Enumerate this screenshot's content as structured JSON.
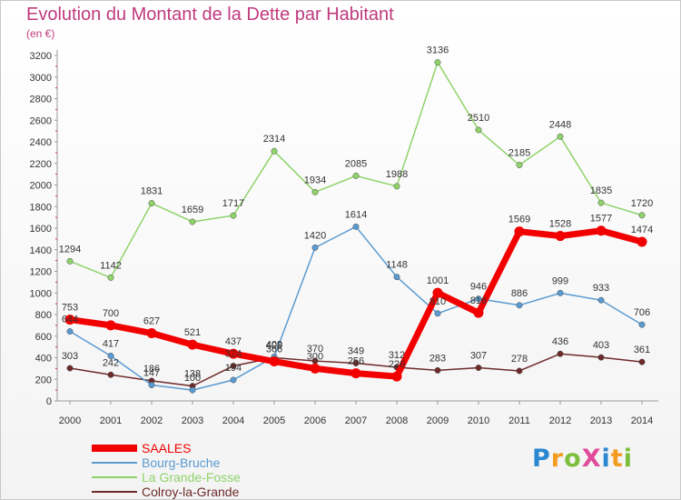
{
  "title": "Evolution du Montant de la Dette par Habitant",
  "subtitle": "(en €)",
  "logo": "ProXiti",
  "chart_data": {
    "type": "line",
    "x": [
      "2000",
      "2001",
      "2002",
      "2003",
      "2004",
      "2005",
      "2006",
      "2007",
      "2008",
      "2009",
      "2010",
      "2011",
      "2012",
      "2013",
      "2014"
    ],
    "ylim": [
      0,
      3200
    ],
    "yticks": [
      0,
      200,
      400,
      600,
      800,
      1000,
      1200,
      1400,
      1600,
      1800,
      2000,
      2200,
      2400,
      2600,
      2800,
      3000,
      3200
    ],
    "grid": false,
    "legend_position": "bottom-left",
    "series": [
      {
        "name": "Colroy-la-Grande",
        "color": "#6e2a2a",
        "width": 1.5,
        "values": [
          303,
          242,
          186,
          138,
          324,
          400,
          370,
          349,
          312,
          283,
          307,
          278,
          436,
          403,
          361
        ],
        "labels": [
          "303",
          "242",
          "186",
          "138",
          "324",
          "400",
          "370",
          "349",
          "312",
          "283",
          "307",
          "278",
          "436",
          "403",
          "361"
        ]
      },
      {
        "name": "La Grande-Fosse",
        "color": "#8fd36a",
        "width": 1.5,
        "values": [
          1294,
          1142,
          1831,
          1659,
          1717,
          2314,
          1934,
          2085,
          1988,
          3136,
          2510,
          2185,
          2448,
          1835,
          1720
        ],
        "labels": [
          "1294",
          "1142",
          "1831",
          "1659",
          "1717",
          "2314",
          "1934",
          "2085",
          "1988",
          "3136",
          "2510",
          "2185",
          "2448",
          "1835",
          "1720"
        ]
      },
      {
        "name": "Bourg-Bruche",
        "color": "#5a9bd1",
        "width": 1.5,
        "values": [
          644,
          417,
          147,
          100,
          194,
          409,
          1420,
          1614,
          1148,
          810,
          946,
          886,
          999,
          933,
          706
        ],
        "labels": [
          "644",
          "417",
          "147",
          "100",
          "194",
          "409",
          "1420",
          "1614",
          "1148",
          "810",
          "946",
          "886",
          "999",
          "933",
          "706"
        ]
      },
      {
        "name": "SAALES",
        "color": "#f20000",
        "width": 7,
        "values": [
          753,
          700,
          627,
          521,
          437,
          366,
          300,
          256,
          226,
          1001,
          816,
          1569,
          1528,
          1577,
          1474
        ],
        "labels": [
          "753",
          "700",
          "627",
          "521",
          "437",
          "366",
          "300",
          "256",
          "226",
          "1001",
          "816",
          "1569",
          "1528",
          "1577",
          "1474"
        ]
      }
    ]
  }
}
